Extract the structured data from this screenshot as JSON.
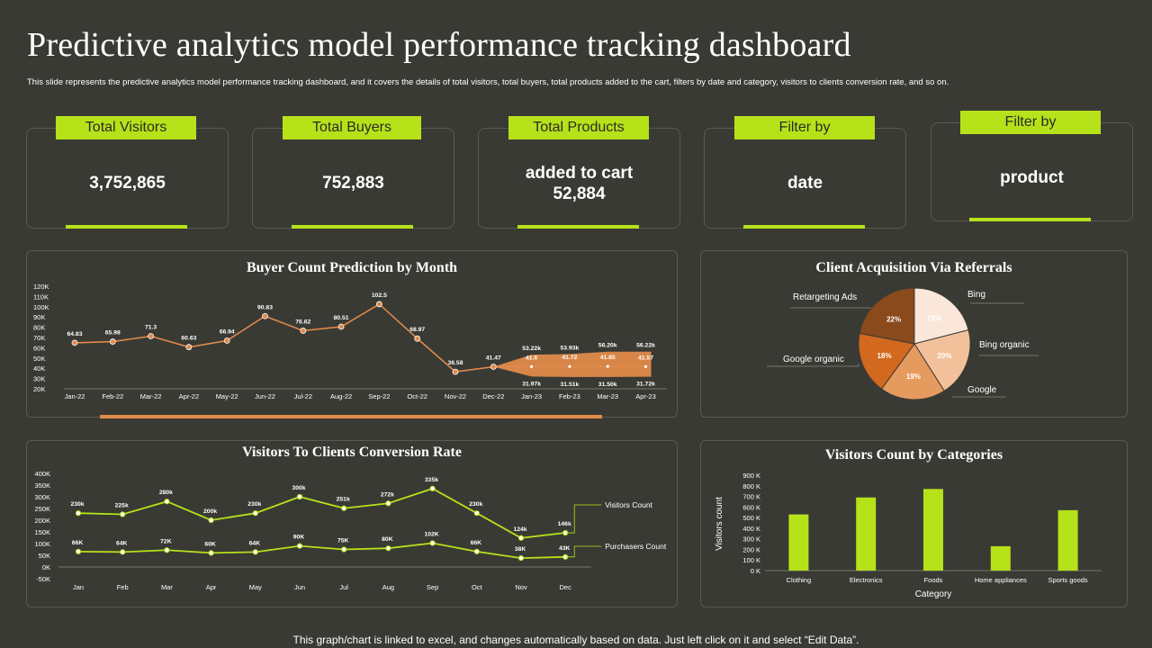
{
  "header": {
    "title": "Predictive analytics model performance tracking dashboard",
    "subtitle": "This slide represents the predictive analytics model performance tracking dashboard, and it covers the details of total visitors, total buyers, total products added to the cart, filters by date and category, visitors to clients conversion rate, and so on."
  },
  "kpis": [
    {
      "label": "Total Visitors",
      "value": "3,752,865"
    },
    {
      "label": "Total Buyers",
      "value": "752,883"
    },
    {
      "label": "Total Products",
      "value_line1": "added to cart",
      "value_line2": "52,884"
    },
    {
      "label": "Filter by",
      "value": "date"
    },
    {
      "label": "Filter by",
      "value": "product"
    }
  ],
  "footer": "This graph/chart is linked to excel,  and changes automatically based on data. Just left click on it and select “Edit Data”.",
  "colors": {
    "accent": "#b6e21a",
    "orange": "#e08a4a",
    "background": "#3a3a34"
  },
  "chart_data": [
    {
      "type": "line",
      "title": "Buyer Count Prediction by Month",
      "categories": [
        "Jan-22",
        "Feb-22",
        "Mar-22",
        "Apr-22",
        "May-22",
        "Jun-22",
        "Jul-22",
        "Aug-22",
        "Sep-22",
        "Oct-22",
        "Nov-22",
        "Dec-22",
        "Jan-23",
        "Feb-23",
        "Mar-23",
        "Apr-23"
      ],
      "y_ticks": [
        "20K",
        "30K",
        "40K",
        "50K",
        "60K",
        "70K",
        "80K",
        "90K",
        "100K",
        "110K",
        "120K"
      ],
      "ylim": [
        20,
        120
      ],
      "series": [
        {
          "values": [
            64.83,
            65.98,
            71.3,
            60.63,
            66.94,
            90.83,
            76.62,
            80.51,
            102.5,
            68.97,
            36.58,
            41.47,
            41.6,
            41.72,
            41.85,
            41.57
          ],
          "labels": [
            "64.83",
            "65.98",
            "71.3",
            "60.63",
            "66.94",
            "90.83",
            "76.62",
            "80.51",
            "102.5",
            "68.97",
            "36.58",
            "41.47",
            "41.6",
            "41.72",
            "41.85",
            "41.57"
          ]
        }
      ],
      "forecast_band": {
        "categories": [
          "Jan-23",
          "Feb-23",
          "Mar-23",
          "Apr-23"
        ],
        "upper": [
          53.22,
          53.93,
          56.2,
          56.22
        ],
        "lower": [
          31.97,
          31.51,
          31.5,
          31.72
        ],
        "upper_labels": [
          "53.22k",
          "53.93k",
          "56.20k",
          "56.22k"
        ],
        "lower_labels": [
          "31.97k",
          "31.51k",
          "31.50k",
          "31.72k"
        ]
      }
    },
    {
      "type": "pie",
      "title": "Client Acquisition Via Referrals",
      "slices": [
        {
          "name": "Bing",
          "value": 21,
          "label": "21%",
          "color": "#fbe7da"
        },
        {
          "name": "Bing organic",
          "value": 20,
          "label": "20%",
          "color": "#f2c19c"
        },
        {
          "name": "Google",
          "value": 19,
          "label": "19%",
          "color": "#e59a5e"
        },
        {
          "name": "Google organic",
          "value": 18,
          "label": "18%",
          "color": "#d2691e"
        },
        {
          "name": "Retargeting Ads",
          "value": 22,
          "label": "22%",
          "color": "#8a4a1c"
        }
      ]
    },
    {
      "type": "line",
      "title": "Visitors To Clients Conversion Rate",
      "categories": [
        "Jan",
        "Feb",
        "Mar",
        "Apr",
        "May",
        "Jun",
        "Jul",
        "Aug",
        "Sep",
        "Oct",
        "Nov",
        "Dec"
      ],
      "y_ticks": [
        "-50K",
        "0K",
        "50K",
        "100K",
        "150K",
        "200K",
        "250K",
        "300K",
        "350K",
        "400K"
      ],
      "ylim": [
        -50,
        400
      ],
      "series": [
        {
          "name": "Visitors Count",
          "values": [
            230,
            225,
            280,
            200,
            230,
            300,
            251,
            272,
            335,
            230,
            124,
            146
          ],
          "labels": [
            "230k",
            "225k",
            "280k",
            "200k",
            "230k",
            "300k",
            "251k",
            "272k",
            "335k",
            "230k",
            "124k",
            "146k"
          ]
        },
        {
          "name": "Purchasers Count",
          "values": [
            66,
            64,
            72,
            60,
            64,
            90,
            75,
            80,
            102,
            66,
            38,
            43
          ],
          "labels": [
            "66K",
            "64K",
            "72K",
            "60K",
            "64K",
            "90K",
            "75K",
            "80K",
            "102K",
            "66K",
            "38K",
            "43K"
          ]
        }
      ]
    },
    {
      "type": "bar",
      "title": "Visitors Count by Categories",
      "categories": [
        "Clothing",
        "Electronics",
        "Foods",
        "Home appliances",
        "Sports goods"
      ],
      "values": [
        530,
        690,
        770,
        230,
        570
      ],
      "xlabel": "Category",
      "ylabel": "Visitors count",
      "y_ticks": [
        "0 K",
        "100 K",
        "200 K",
        "300 K",
        "400 K",
        "500 K",
        "600 K",
        "700 K",
        "800 K",
        "900 K"
      ],
      "ylim": [
        0,
        900
      ]
    }
  ]
}
